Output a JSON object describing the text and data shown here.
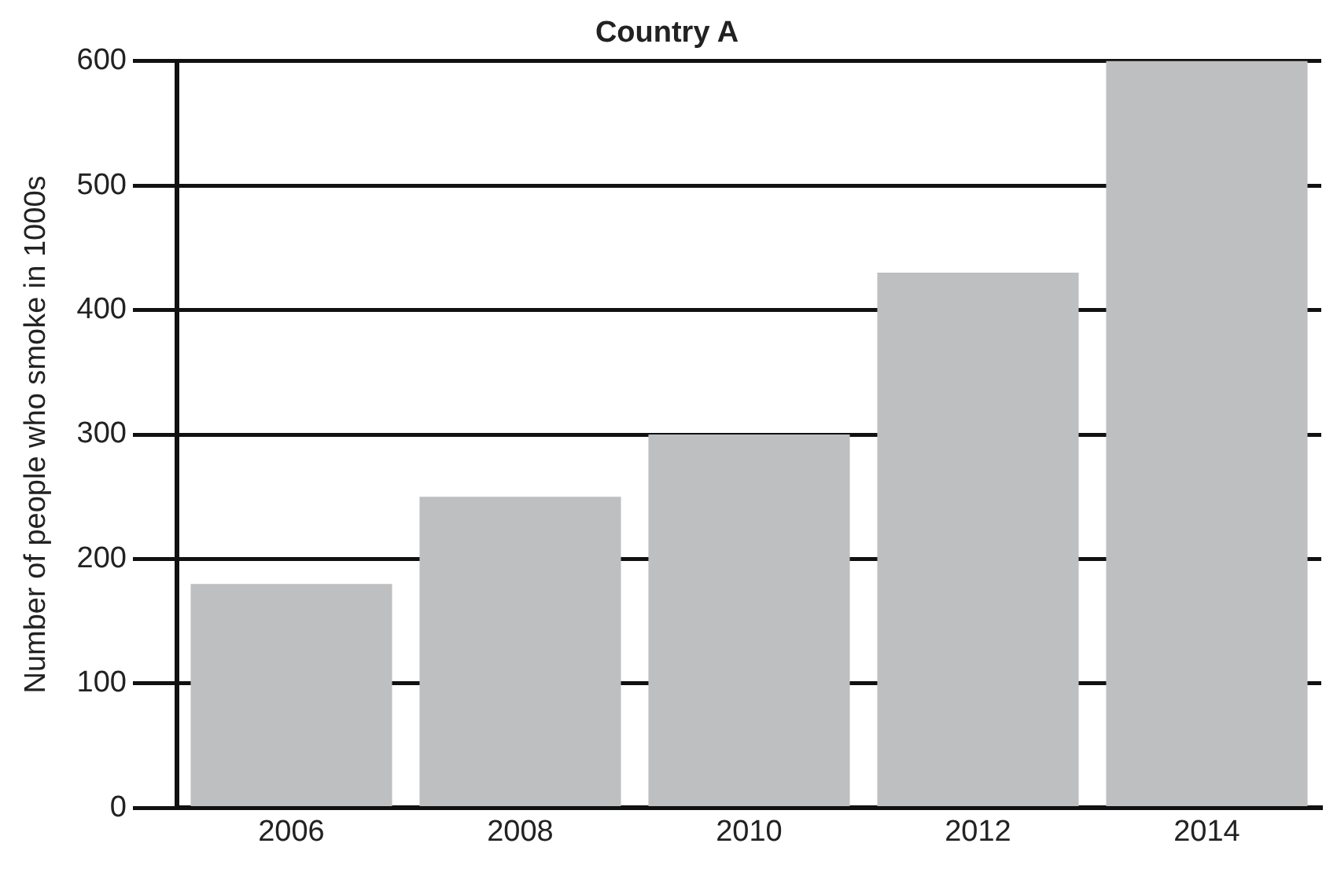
{
  "chart_data": {
    "type": "bar",
    "title": "Country A",
    "ylabel": "Number of people who smoke in 1000s",
    "categories": [
      "2006",
      "2008",
      "2010",
      "2012",
      "2014"
    ],
    "values": [
      180,
      250,
      300,
      430,
      600
    ],
    "color": "#bebfc1",
    "ylim": [
      0,
      600
    ],
    "yticks": [
      0,
      100,
      200,
      300,
      400,
      500,
      600
    ],
    "grid": "y"
  }
}
